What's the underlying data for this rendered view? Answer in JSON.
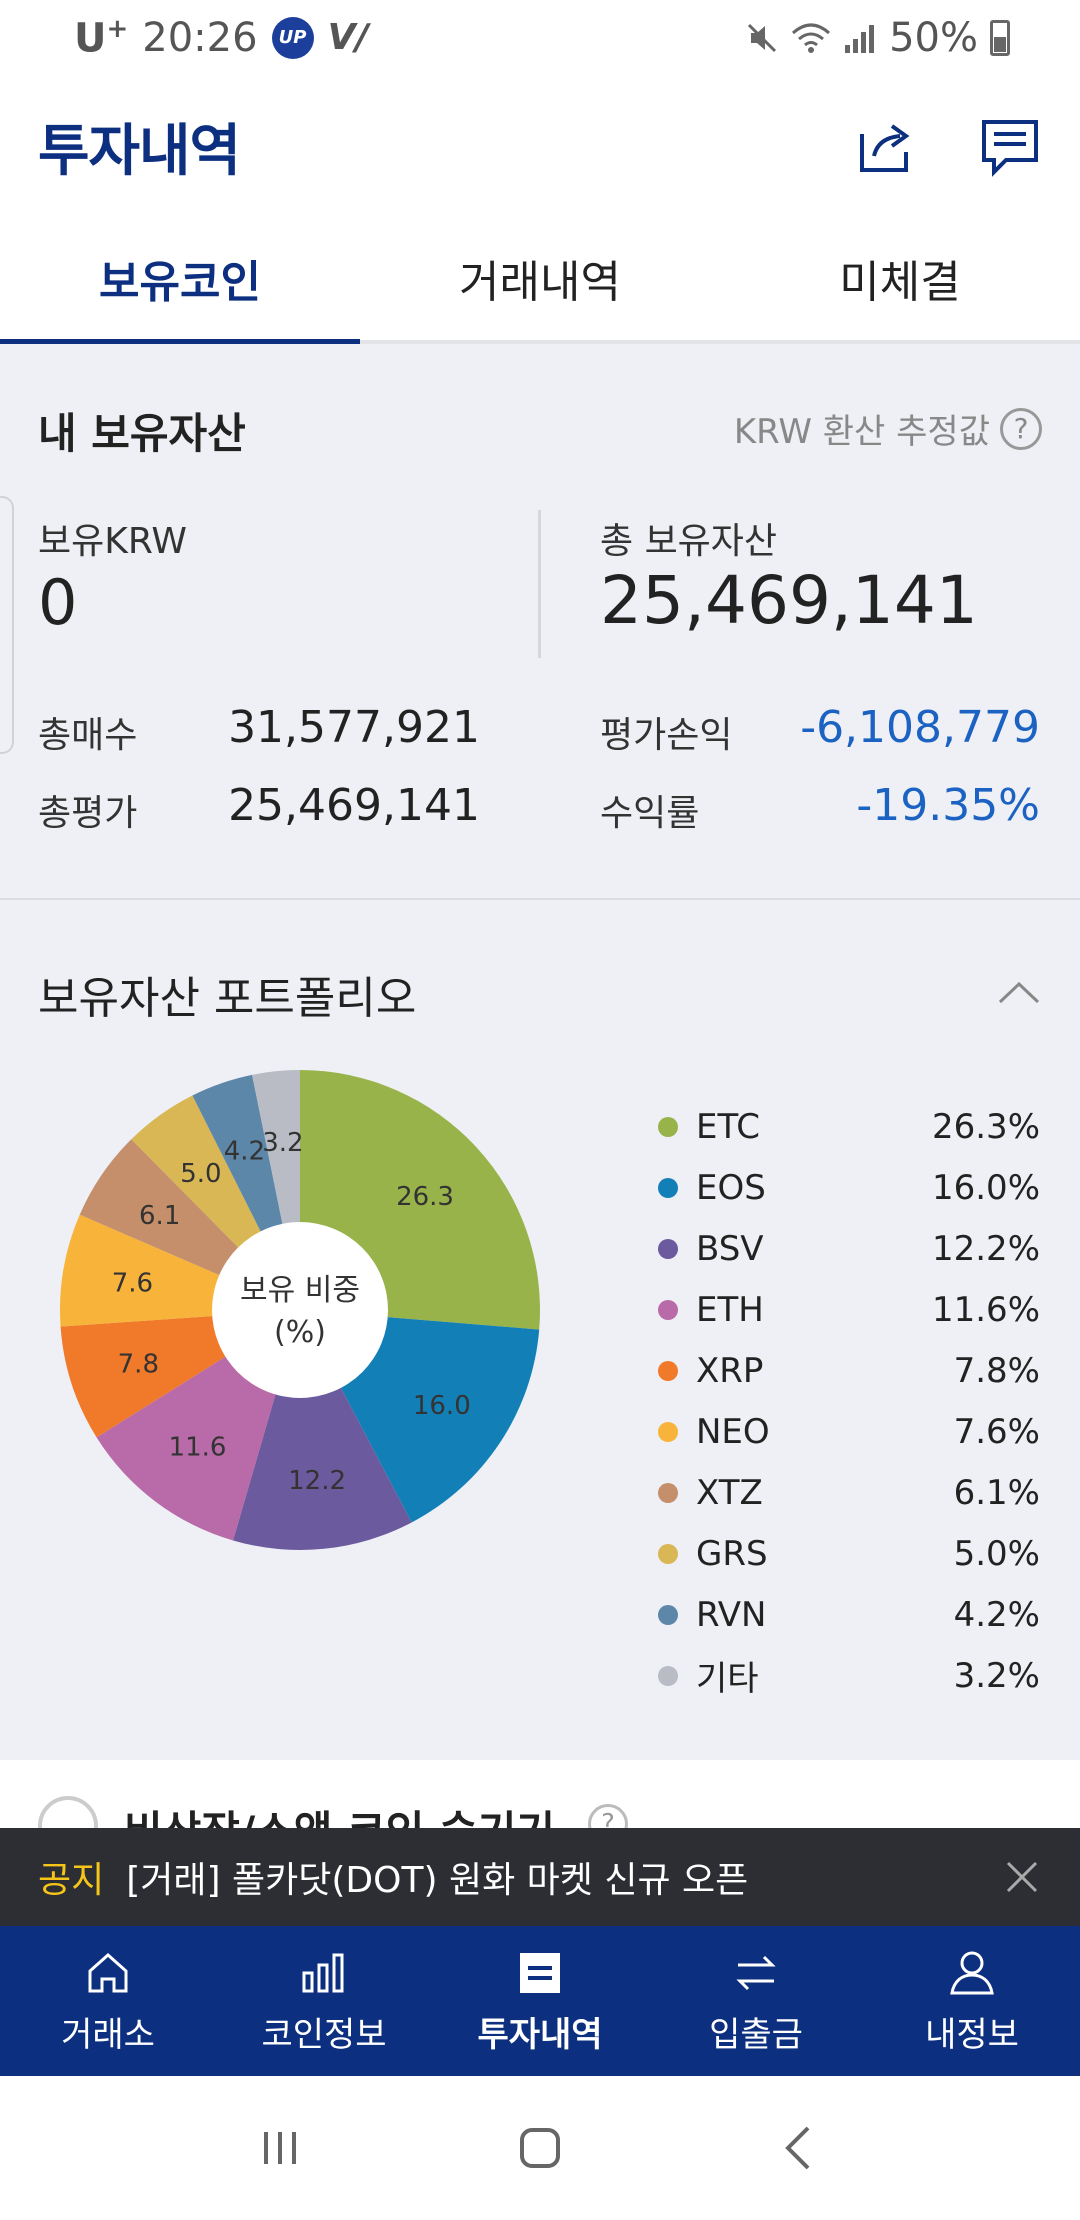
{
  "status_bar": {
    "carrier": "U",
    "carrier_sup": "+",
    "time": "20:26",
    "badge": "UP",
    "battery": "50%"
  },
  "header": {
    "title": "투자내역",
    "icons": [
      "share-icon",
      "message-icon"
    ]
  },
  "tabs": [
    {
      "label": "보유코인",
      "active": true
    },
    {
      "label": "거래내역",
      "active": false
    },
    {
      "label": "미체결",
      "active": false
    }
  ],
  "assets": {
    "title": "내 보유자산",
    "krw_note": "KRW 환산 추정값",
    "krw_label": "보유KRW",
    "krw_value": "0",
    "total_label": "총 보유자산",
    "total_value": "25,469,141",
    "rows": {
      "buy_label": "총매수",
      "buy_value": "31,577,921",
      "eval_label": "총평가",
      "eval_value": "25,469,141",
      "pnl_label": "평가손익",
      "pnl_value": "-6,108,779",
      "rate_label": "수익률",
      "rate_value": "-19.35%"
    },
    "negative_color": "#1b62c2"
  },
  "portfolio": {
    "title": "보유자산 포트폴리오",
    "center_line1": "보유 비중",
    "center_line2": "(%)"
  },
  "chart_data": {
    "type": "pie",
    "categories": [
      "ETC",
      "EOS",
      "BSV",
      "ETH",
      "XRP",
      "NEO",
      "XTZ",
      "GRS",
      "RVN",
      "기타"
    ],
    "values": [
      26.3,
      16.0,
      12.2,
      11.6,
      7.8,
      7.6,
      6.1,
      5.0,
      4.2,
      3.2
    ],
    "data_labels": [
      "26.3",
      "16.0",
      "12.2",
      "11.6",
      "7.8",
      "7.6",
      "6.1",
      "5.0",
      "4.2",
      "3.2"
    ],
    "legend_labels": [
      "26.3%",
      "16.0%",
      "12.2%",
      "11.6%",
      "7.8%",
      "7.6%",
      "6.1%",
      "5.0%",
      "4.2%",
      "3.2%"
    ],
    "colors": [
      "#98b34a",
      "#137fb7",
      "#6b5a9e",
      "#b96aa8",
      "#f07a2a",
      "#f8b33b",
      "#c48f6a",
      "#d9b754",
      "#5d87a8",
      "#b9bcc4"
    ],
    "legend_position": "right"
  },
  "next_item": {
    "text": "비상장/소액 코인 숨기기"
  },
  "notice": {
    "tag": "공지",
    "text": "[거래] 폴카닷(DOT) 원화 마켓 신규 오픈"
  },
  "bottom_nav": [
    {
      "label": "거래소",
      "icon": "home-icon",
      "active": false
    },
    {
      "label": "코인정보",
      "icon": "chart-icon",
      "active": false
    },
    {
      "label": "투자내역",
      "icon": "list-icon",
      "active": true
    },
    {
      "label": "입출금",
      "icon": "transfer-icon",
      "active": false
    },
    {
      "label": "내정보",
      "icon": "person-icon",
      "active": false
    }
  ]
}
